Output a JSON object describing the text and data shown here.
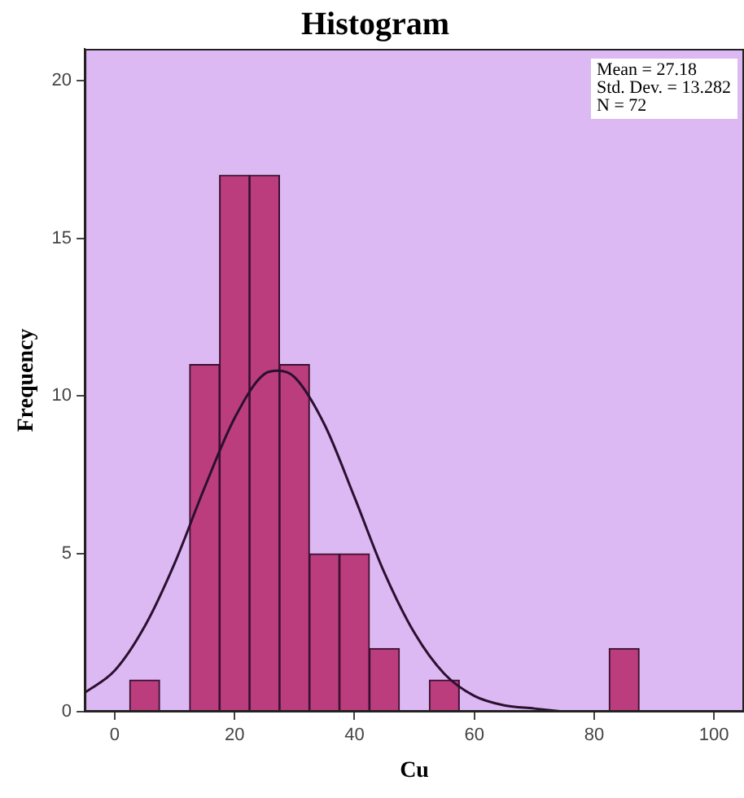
{
  "chart_data": {
    "type": "histogram",
    "title": "Histogram",
    "xlabel": "Cu",
    "ylabel": "Frequency",
    "bins": [
      2.5,
      7.5,
      12.5,
      17.5,
      22.5,
      27.5,
      32.5,
      37.5,
      42.5,
      47.5,
      52.5,
      57.5,
      62.5,
      67.5,
      72.5,
      77.5,
      82.5,
      87.5
    ],
    "values": [
      1,
      0,
      11,
      17,
      17,
      11,
      5,
      5,
      2,
      0,
      1,
      0,
      0,
      0,
      0,
      0,
      2
    ],
    "color": "#bb3d7e",
    "xlim": [
      -5,
      105
    ],
    "xticks": [
      0,
      20,
      40,
      60,
      80,
      100
    ],
    "ylim": [
      0,
      21
    ],
    "yticks": [
      0,
      5,
      10,
      15,
      20
    ],
    "grid": false,
    "legend": false,
    "annotations": [
      "Mean = 27.18",
      "Std. Dev. = 13.282",
      "N = 72"
    ],
    "series": [
      {
        "type": "line",
        "color": "#2a1030",
        "marker": "none",
        "x": [
          -5,
          0,
          5,
          10,
          15,
          20,
          25,
          27.2,
          30,
          35,
          40,
          45,
          50,
          55,
          60,
          65,
          70,
          75
        ],
        "values": [
          0.6,
          1.3,
          2.7,
          4.7,
          7.1,
          9.3,
          10.7,
          10.8,
          10.6,
          9.1,
          6.8,
          4.4,
          2.5,
          1.2,
          0.5,
          0.2,
          0.1,
          0
        ]
      }
    ]
  }
}
